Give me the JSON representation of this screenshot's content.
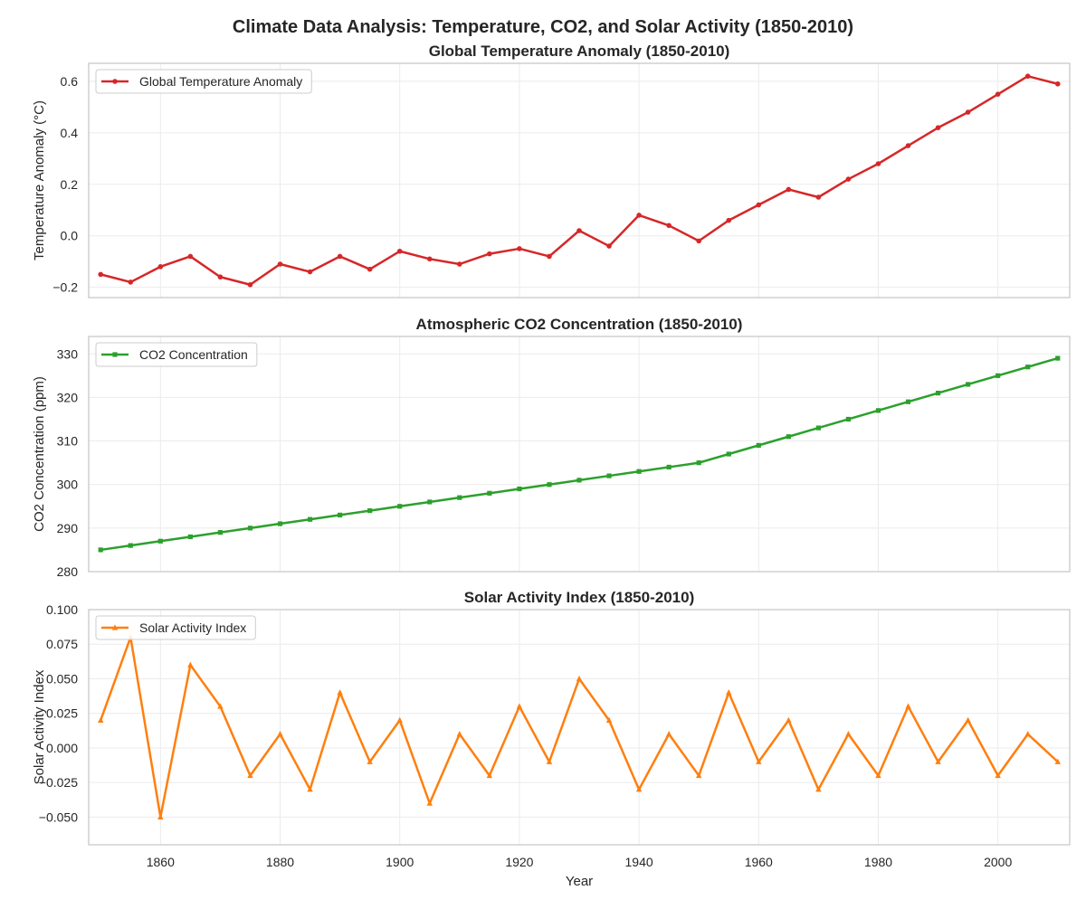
{
  "figure": {
    "suptitle": "Climate Data Analysis: Temperature, CO2, and Solar Activity (1850-2010)",
    "xlabel": "Year"
  },
  "chart_data": [
    {
      "type": "line",
      "title": "Global Temperature Anomaly (1850-2010)",
      "xlabel": "",
      "ylabel": "Temperature Anomaly (°C)",
      "xlim": [
        1848,
        2012
      ],
      "ylim": [
        -0.24,
        0.67
      ],
      "xticks": [
        1860,
        1880,
        1900,
        1920,
        1940,
        1960,
        1980,
        2000
      ],
      "yticks": [
        -0.2,
        0.0,
        0.2,
        0.4,
        0.6
      ],
      "ytick_labels": [
        "−0.2",
        "0.0",
        "0.2",
        "0.4",
        "0.6"
      ],
      "grid": true,
      "legend_position": "top-left",
      "series": [
        {
          "name": "Global Temperature Anomaly",
          "color": "#d62728",
          "marker": "circle",
          "x": [
            1850,
            1855,
            1860,
            1865,
            1870,
            1875,
            1880,
            1885,
            1890,
            1895,
            1900,
            1905,
            1910,
            1915,
            1920,
            1925,
            1930,
            1935,
            1940,
            1945,
            1950,
            1955,
            1960,
            1965,
            1970,
            1975,
            1980,
            1985,
            1990,
            1995,
            2000,
            2005,
            2010
          ],
          "values": [
            -0.15,
            -0.18,
            -0.12,
            -0.08,
            -0.16,
            -0.19,
            -0.11,
            -0.14,
            -0.08,
            -0.13,
            -0.06,
            -0.09,
            -0.11,
            -0.07,
            -0.05,
            -0.08,
            0.02,
            -0.04,
            0.08,
            0.04,
            -0.02,
            0.06,
            0.12,
            0.18,
            0.15,
            0.22,
            0.28,
            0.35,
            0.42,
            0.48,
            0.55,
            0.62,
            0.59
          ]
        }
      ]
    },
    {
      "type": "line",
      "title": "Atmospheric CO2 Concentration (1850-2010)",
      "xlabel": "",
      "ylabel": "CO2 Concentration (ppm)",
      "xlim": [
        1848,
        2012
      ],
      "ylim": [
        280,
        334
      ],
      "xticks": [
        1860,
        1880,
        1900,
        1920,
        1940,
        1960,
        1980,
        2000
      ],
      "yticks": [
        280,
        290,
        300,
        310,
        320,
        330
      ],
      "ytick_labels": [
        "280",
        "290",
        "300",
        "310",
        "320",
        "330"
      ],
      "grid": true,
      "legend_position": "top-left",
      "series": [
        {
          "name": "CO2 Concentration",
          "color": "#2ca02c",
          "marker": "square",
          "x": [
            1850,
            1855,
            1860,
            1865,
            1870,
            1875,
            1880,
            1885,
            1890,
            1895,
            1900,
            1905,
            1910,
            1915,
            1920,
            1925,
            1930,
            1935,
            1940,
            1945,
            1950,
            1955,
            1960,
            1965,
            1970,
            1975,
            1980,
            1985,
            1990,
            1995,
            2000,
            2005,
            2010
          ],
          "values": [
            285,
            286,
            287,
            288,
            289,
            290,
            291,
            292,
            293,
            294,
            295,
            296,
            297,
            298,
            299,
            300,
            301,
            302,
            303,
            304,
            305,
            307,
            309,
            311,
            313,
            315,
            317,
            319,
            321,
            323,
            325,
            327,
            329
          ]
        }
      ]
    },
    {
      "type": "line",
      "title": "Solar Activity Index (1850-2010)",
      "xlabel": "Year",
      "ylabel": "Solar Activity Index",
      "xlim": [
        1848,
        2012
      ],
      "ylim": [
        -0.07,
        0.1
      ],
      "xticks": [
        1860,
        1880,
        1900,
        1920,
        1940,
        1960,
        1980,
        2000
      ],
      "yticks": [
        -0.05,
        -0.025,
        0.0,
        0.025,
        0.05,
        0.075,
        0.1
      ],
      "ytick_labels": [
        "−0.050",
        "−0.025",
        "0.000",
        "0.025",
        "0.050",
        "0.075",
        "0.100"
      ],
      "grid": true,
      "legend_position": "top-left",
      "series": [
        {
          "name": "Solar Activity Index",
          "color": "#ff7f0e",
          "marker": "triangle",
          "x": [
            1850,
            1855,
            1860,
            1865,
            1870,
            1875,
            1880,
            1885,
            1890,
            1895,
            1900,
            1905,
            1910,
            1915,
            1920,
            1925,
            1930,
            1935,
            1940,
            1945,
            1950,
            1955,
            1960,
            1965,
            1970,
            1975,
            1980,
            1985,
            1990,
            1995,
            2000,
            2005,
            2010
          ],
          "values": [
            0.02,
            0.08,
            -0.05,
            0.06,
            0.03,
            -0.02,
            0.01,
            -0.03,
            0.04,
            -0.01,
            0.02,
            -0.04,
            0.01,
            -0.02,
            0.03,
            -0.01,
            0.05,
            0.02,
            -0.03,
            0.01,
            -0.02,
            0.04,
            -0.01,
            0.02,
            -0.03,
            0.01,
            -0.02,
            0.03,
            -0.01,
            0.02,
            -0.02,
            0.01,
            -0.01
          ]
        }
      ]
    }
  ]
}
